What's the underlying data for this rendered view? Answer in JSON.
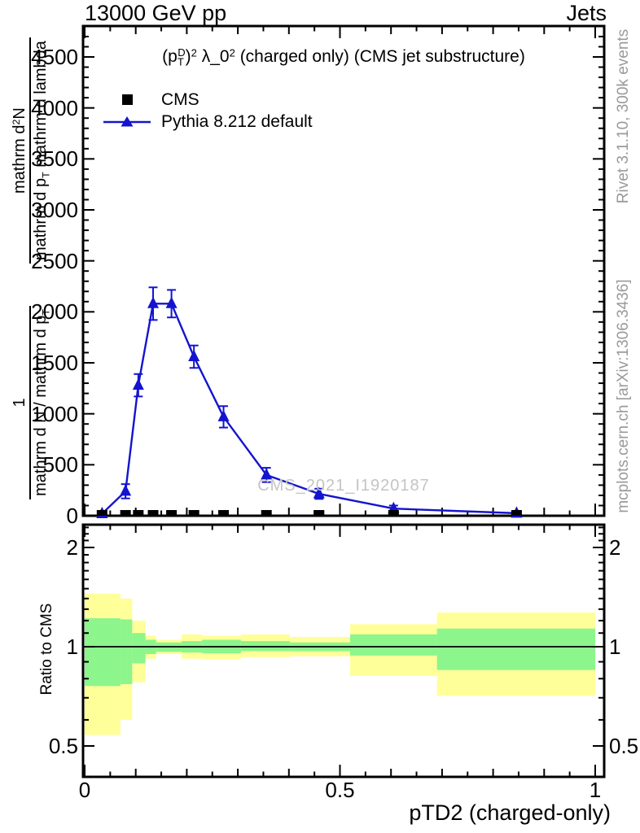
{
  "header": {
    "left": "13000 GeV pp",
    "right": "Jets"
  },
  "plot_title": {
    "open": "(p",
    "p_sub": "T",
    "p_sup": "D",
    "close": ")",
    "exp1": "2",
    "mid": " λ_0",
    "exp2": "2",
    "rest": " (charged only) (CMS jet substructure)"
  },
  "legend": {
    "items": [
      {
        "label": "CMS",
        "marker": "square"
      },
      {
        "label": "Pythia 8.212 default",
        "marker": "triangle-line"
      }
    ]
  },
  "watermark": "CMS_2021_I1920187",
  "side_notes": {
    "top_right": "Rivet 3.1.10,  300k events",
    "bottom_right": "mcplots.cern.ch [arXiv:1306.3436]"
  },
  "y_axis_label": {
    "frac1_num": "1",
    "frac1_den_a": "mathrm d N / mathrm d p",
    "frac1_den_sub": "T",
    "frac2_num_a": "mathrm d",
    "frac2_num_sup": "2",
    "frac2_num_b": "N",
    "frac2_den_a": "mathrm d p",
    "frac2_den_sub": "T",
    "frac2_den_b": " mathrm d lambda"
  },
  "ratio_axis_label": "Ratio to CMS",
  "x_axis_label": "pTD2 (charged-only)",
  "colors": {
    "mc_line": "#1414cf",
    "data_marker": "#000000",
    "band_outer": "#ffff99",
    "band_inner": "#8cf58c",
    "note_gray": "#9a9a9a",
    "watermark_gray": "#c4c4c4"
  },
  "axes": {
    "main_y": {
      "majors": [
        0,
        500,
        1000,
        1500,
        2000,
        2500,
        3000,
        3500,
        4000,
        4500
      ],
      "labels": [
        "0",
        "500",
        "1000",
        "1500",
        "2000",
        "2500",
        "3000",
        "3500",
        "4000",
        "4500"
      ],
      "minor_step": 100,
      "max": 4800
    },
    "x": {
      "majors": [
        0,
        0.5,
        1
      ],
      "labels": [
        "0",
        "0.5",
        "1"
      ],
      "minor_step": 0.05,
      "min": 0,
      "max": 1
    },
    "ratio_y": {
      "majors": [
        0.5,
        1,
        2
      ],
      "labels": [
        "0.5",
        "1",
        "2"
      ],
      "minors": [
        0.6,
        0.7,
        0.8,
        0.9,
        1.1,
        1.2,
        1.3,
        1.4,
        1.5,
        1.6,
        1.7,
        1.8,
        1.9,
        2.1,
        2.2,
        2.3
      ],
      "scale": "log",
      "min": 0.4,
      "max": 2.35
    }
  },
  "chart_data": {
    "type": "line",
    "title": "(p_T^D)^2 lambda_0^2 (charged only) (CMS jet substructure)",
    "xlabel": "pTD2 (charged-only)",
    "ylabel": "1/(dN/dp_T) d^2N/(dp_T dlambda)",
    "xlim": [
      0,
      1
    ],
    "ylim": [
      0,
      4800
    ],
    "grid": false,
    "legend_position": "upper-left",
    "x": [
      0.034,
      0.08,
      0.105,
      0.134,
      0.17,
      0.214,
      0.272,
      0.356,
      0.459,
      0.605,
      0.846
    ],
    "series": [
      {
        "name": "CMS",
        "marker": "square",
        "color": "#000000",
        "values": [
          0,
          0,
          0,
          0,
          0,
          0,
          0,
          0,
          0,
          0,
          0
        ]
      },
      {
        "name": "Pythia 8.212 default",
        "marker": "triangle",
        "color": "#1414cf",
        "values": [
          20,
          240,
          1280,
          2080,
          2080,
          1560,
          970,
          400,
          215,
          70,
          25
        ],
        "yerr": [
          15,
          70,
          110,
          160,
          135,
          110,
          105,
          70,
          50,
          30,
          12
        ]
      }
    ],
    "ratio_panel": {
      "ylabel": "Ratio to CMS",
      "yscale": "log",
      "ylim": [
        0.4,
        2.35
      ],
      "reference_line": 1,
      "bin_edges": [
        0,
        0.07,
        0.093,
        0.119,
        0.14,
        0.19,
        0.23,
        0.306,
        0.402,
        0.52,
        0.69,
        1.0
      ],
      "outer_band": {
        "color": "#ffff99",
        "lo": [
          0.54,
          0.6,
          0.78,
          0.92,
          0.95,
          0.92,
          0.915,
          0.93,
          0.935,
          0.815,
          0.71
        ],
        "hi": [
          1.45,
          1.4,
          1.2,
          1.08,
          1.05,
          1.09,
          1.08,
          1.09,
          1.07,
          1.17,
          1.27
        ]
      },
      "inner_band": {
        "color": "#8cf58c",
        "lo": [
          0.76,
          0.77,
          0.89,
          0.95,
          0.965,
          0.96,
          0.955,
          0.97,
          0.97,
          0.94,
          0.85
        ],
        "hi": [
          1.22,
          1.21,
          1.1,
          1.05,
          1.03,
          1.04,
          1.05,
          1.04,
          1.03,
          1.09,
          1.135
        ]
      }
    }
  }
}
